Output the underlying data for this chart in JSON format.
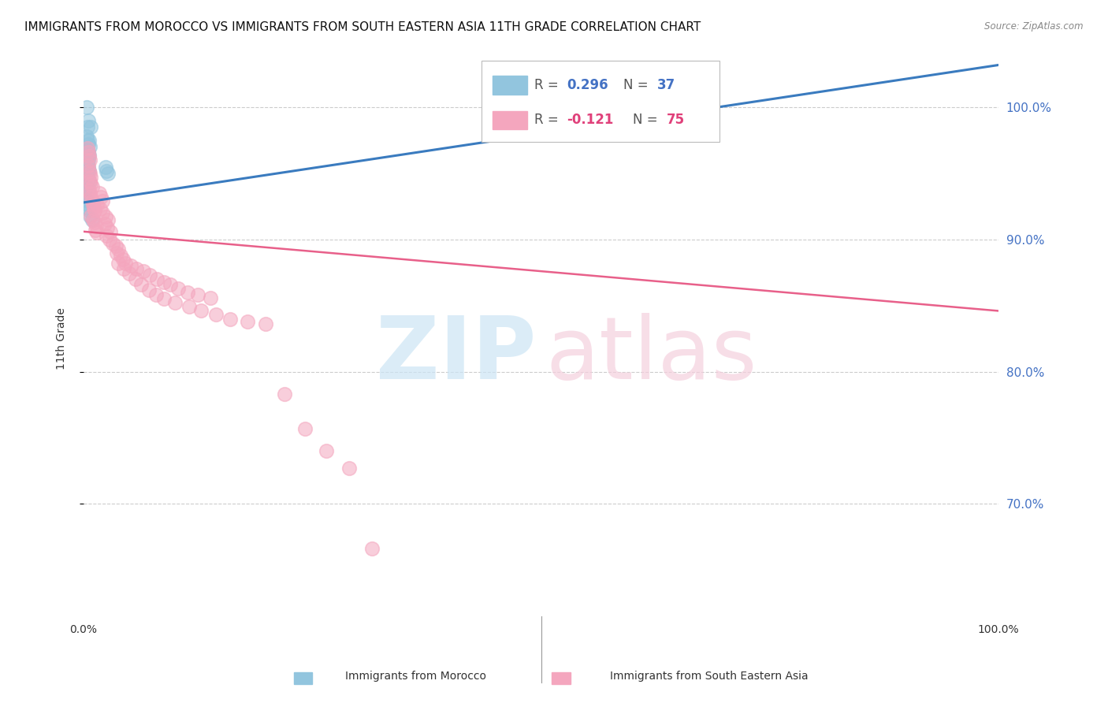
{
  "title": "IMMIGRANTS FROM MOROCCO VS IMMIGRANTS FROM SOUTH EASTERN ASIA 11TH GRADE CORRELATION CHART",
  "source": "Source: ZipAtlas.com",
  "ylabel": "11th Grade",
  "ylabel_right_ticks": [
    "100.0%",
    "90.0%",
    "80.0%",
    "70.0%"
  ],
  "ylabel_right_positions": [
    1.0,
    0.9,
    0.8,
    0.7
  ],
  "xlim": [
    0.0,
    1.0
  ],
  "ylim": [
    0.615,
    1.035
  ],
  "legend_r_blue": "0.296",
  "legend_n_blue": "37",
  "legend_r_pink": "-0.121",
  "legend_n_pink": "75",
  "blue_color": "#92c5de",
  "pink_color": "#f4a6be",
  "blue_line_color": "#3a7bbf",
  "pink_line_color": "#e8608a",
  "blue_scatter_x": [
    0.003,
    0.005,
    0.008,
    0.004,
    0.003,
    0.004,
    0.006,
    0.005,
    0.007,
    0.004,
    0.005,
    0.006,
    0.003,
    0.004,
    0.005,
    0.004,
    0.003,
    0.005,
    0.004,
    0.006,
    0.004,
    0.003,
    0.005,
    0.006,
    0.003,
    0.004,
    0.005,
    0.003,
    0.005,
    0.024,
    0.025,
    0.027,
    0.003,
    0.005,
    0.006,
    0.007,
    0.009
  ],
  "blue_scatter_y": [
    1.0,
    0.99,
    0.985,
    0.985,
    0.978,
    0.975,
    0.975,
    0.972,
    0.97,
    0.968,
    0.966,
    0.964,
    0.963,
    0.962,
    0.96,
    0.958,
    0.957,
    0.955,
    0.953,
    0.952,
    0.95,
    0.948,
    0.946,
    0.943,
    0.94,
    0.938,
    0.936,
    0.933,
    0.929,
    0.955,
    0.952,
    0.95,
    0.927,
    0.924,
    0.922,
    0.918,
    0.915
  ],
  "pink_scatter_x": [
    0.004,
    0.005,
    0.006,
    0.007,
    0.005,
    0.006,
    0.007,
    0.008,
    0.007,
    0.008,
    0.009,
    0.006,
    0.007,
    0.008,
    0.009,
    0.01,
    0.011,
    0.012,
    0.008,
    0.01,
    0.012,
    0.014,
    0.013,
    0.015,
    0.017,
    0.019,
    0.021,
    0.015,
    0.018,
    0.021,
    0.024,
    0.027,
    0.023,
    0.026,
    0.029,
    0.025,
    0.028,
    0.032,
    0.035,
    0.038,
    0.036,
    0.04,
    0.043,
    0.046,
    0.052,
    0.058,
    0.065,
    0.072,
    0.08,
    0.088,
    0.095,
    0.103,
    0.114,
    0.125,
    0.139,
    0.038,
    0.044,
    0.05,
    0.057,
    0.063,
    0.071,
    0.079,
    0.088,
    0.1,
    0.115,
    0.128,
    0.145,
    0.16,
    0.179,
    0.199,
    0.22,
    0.242,
    0.265,
    0.29,
    0.315
  ],
  "pink_scatter_y": [
    0.969,
    0.966,
    0.963,
    0.96,
    0.956,
    0.952,
    0.95,
    0.947,
    0.944,
    0.942,
    0.94,
    0.937,
    0.935,
    0.932,
    0.929,
    0.926,
    0.924,
    0.922,
    0.918,
    0.915,
    0.913,
    0.91,
    0.907,
    0.905,
    0.935,
    0.932,
    0.929,
    0.926,
    0.923,
    0.92,
    0.917,
    0.915,
    0.912,
    0.909,
    0.906,
    0.903,
    0.9,
    0.897,
    0.895,
    0.893,
    0.89,
    0.888,
    0.885,
    0.882,
    0.88,
    0.878,
    0.876,
    0.873,
    0.87,
    0.868,
    0.866,
    0.863,
    0.86,
    0.858,
    0.856,
    0.882,
    0.878,
    0.874,
    0.87,
    0.866,
    0.862,
    0.858,
    0.855,
    0.852,
    0.849,
    0.846,
    0.843,
    0.84,
    0.838,
    0.836,
    0.783,
    0.757,
    0.74,
    0.727,
    0.666
  ],
  "blue_trend_x": [
    0.0,
    1.0
  ],
  "blue_trend_y": [
    0.928,
    1.032
  ],
  "pink_trend_x": [
    0.0,
    1.0
  ],
  "pink_trend_y": [
    0.906,
    0.846
  ],
  "grid_color": "#cccccc",
  "background_color": "#ffffff",
  "title_fontsize": 11,
  "axis_label_fontsize": 10,
  "tick_fontsize": 10
}
